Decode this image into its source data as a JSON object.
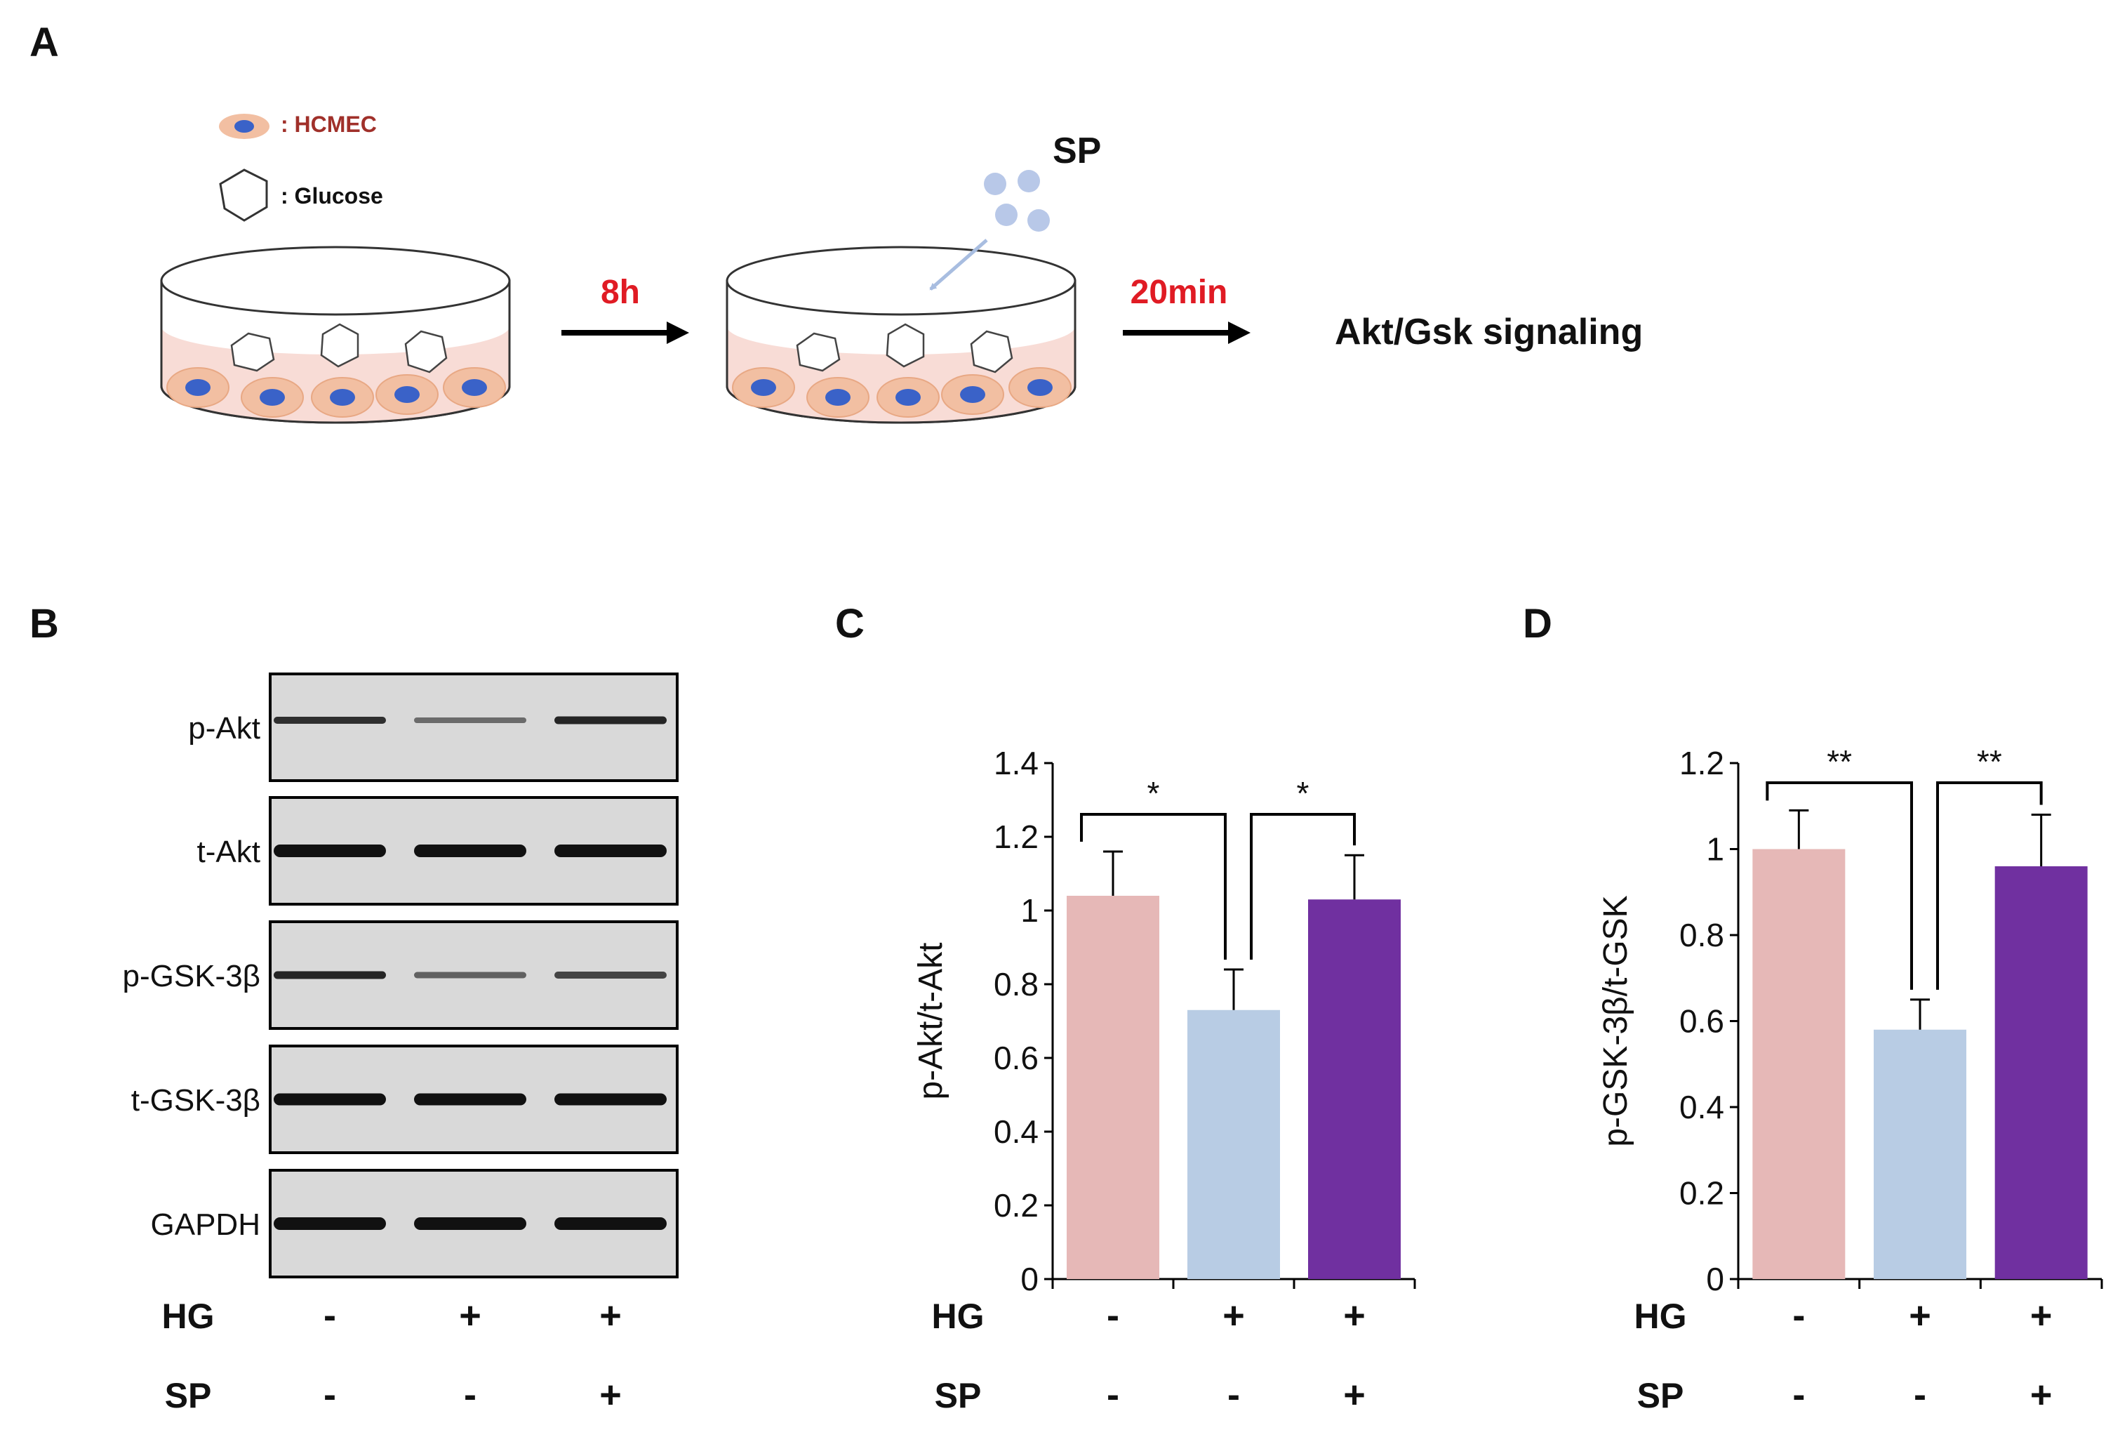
{
  "panels": {
    "a": "A",
    "b": "B",
    "c": "C",
    "d": "D"
  },
  "schematic": {
    "legend_cell": ": HCMEC",
    "legend_glucose": ": Glucose",
    "sp": "SP",
    "time1": "8h",
    "time2": "20min",
    "readout": "Akt/Gsk signaling",
    "colors": {
      "medium": "#f8dcd6",
      "cell": "#f2bfa2",
      "nucleus": "#3a62c8",
      "particle": "#b8c8e8",
      "red_text": "#e01b24",
      "hcmec_text": "#a0302a"
    }
  },
  "blot": {
    "rows": [
      "p-Akt",
      "t-Akt",
      "p-GSK-3β",
      "t-GSK-3β",
      "GAPDH"
    ],
    "hg_label": "HG",
    "sp_label": "SP",
    "hg_signs": [
      "-",
      "+",
      "+"
    ],
    "sp_signs": [
      "-",
      "-",
      "+"
    ]
  },
  "chart_data": [
    {
      "type": "bar",
      "panel": "C",
      "ylabel": "p-Akt/t-Akt",
      "ylim": [
        0,
        1.4
      ],
      "yticks": [
        "0",
        "0.2",
        "0.4",
        "0.6",
        "0.8",
        "1",
        "1.2",
        "1.4"
      ],
      "tick_values": [
        0,
        0.2,
        0.4,
        0.6,
        0.8,
        1,
        1.2,
        1.4
      ],
      "categories": [
        "HG-/SP-",
        "HG+/SP-",
        "HG+/SP+"
      ],
      "values": [
        1.04,
        0.73,
        1.03
      ],
      "errors": [
        0.12,
        0.11,
        0.12
      ],
      "colors": [
        "#e6b8b7",
        "#b8cce4",
        "#7030a0"
      ],
      "significance": [
        {
          "from": 0,
          "to": 1,
          "label": "*"
        },
        {
          "from": 1,
          "to": 2,
          "label": "*"
        }
      ],
      "hg_label": "HG",
      "sp_label": "SP",
      "hg_signs": [
        "-",
        "+",
        "+"
      ],
      "sp_signs": [
        "-",
        "-",
        "+"
      ]
    },
    {
      "type": "bar",
      "panel": "D",
      "ylabel": "p-GSK-3β/t-GSK",
      "ylim": [
        0,
        1.2
      ],
      "yticks": [
        "0",
        "0.2",
        "0.4",
        "0.6",
        "0.8",
        "1",
        "1.2"
      ],
      "tick_values": [
        0,
        0.2,
        0.4,
        0.6,
        0.8,
        1,
        1.2
      ],
      "categories": [
        "HG-/SP-",
        "HG+/SP-",
        "HG+/SP+"
      ],
      "values": [
        1.0,
        0.58,
        0.96
      ],
      "errors": [
        0.09,
        0.07,
        0.12
      ],
      "colors": [
        "#e6b8b7",
        "#b8cce4",
        "#7030a0"
      ],
      "significance": [
        {
          "from": 0,
          "to": 1,
          "label": "**"
        },
        {
          "from": 1,
          "to": 2,
          "label": "**"
        }
      ],
      "hg_label": "HG",
      "sp_label": "SP",
      "hg_signs": [
        "-",
        "+",
        "+"
      ],
      "sp_signs": [
        "-",
        "-",
        "+"
      ]
    }
  ]
}
